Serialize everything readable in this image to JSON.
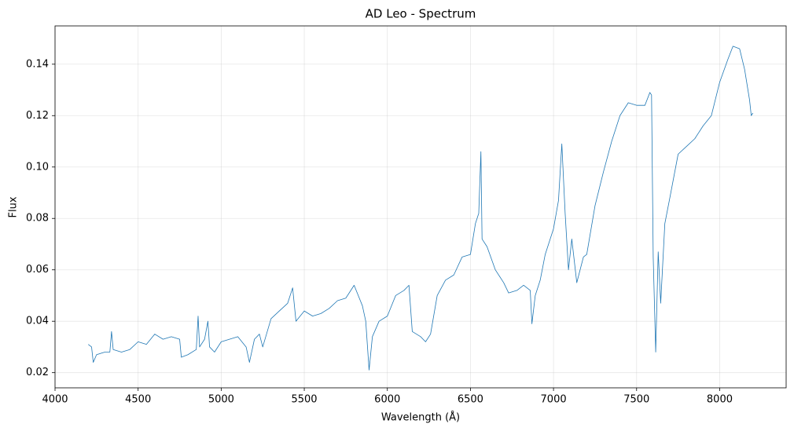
{
  "chart_data": {
    "type": "line",
    "title": "AD Leo - Spectrum",
    "x_label": "Wavelength (Å)",
    "y_label": "Flux",
    "color": "#1f77b4",
    "grid": true,
    "xlim": [
      4000,
      8400
    ],
    "xticks": [
      4000,
      4500,
      5000,
      5500,
      6000,
      6500,
      7000,
      7500,
      8000
    ],
    "ylim": [
      0.0141,
      0.1549
    ],
    "yticks": [
      0.02,
      0.04,
      0.06,
      0.08,
      {
        "value": 0.1,
        "label": "0.10"
      },
      0.12,
      0.14
    ],
    "x": [
      4200,
      4220,
      4230,
      4250,
      4300,
      4330,
      4340,
      4350,
      4400,
      4450,
      4500,
      4550,
      4600,
      4650,
      4700,
      4750,
      4760,
      4800,
      4850,
      4861,
      4870,
      4900,
      4920,
      4930,
      4960,
      5000,
      5050,
      5100,
      5150,
      5170,
      5200,
      5230,
      5250,
      5300,
      5350,
      5400,
      5430,
      5450,
      5500,
      5550,
      5600,
      5650,
      5700,
      5750,
      5800,
      5850,
      5870,
      5890,
      5910,
      5950,
      6000,
      6050,
      6100,
      6130,
      6150,
      6200,
      6230,
      6260,
      6300,
      6350,
      6400,
      6450,
      6500,
      6530,
      6550,
      6563,
      6570,
      6600,
      6650,
      6700,
      6730,
      6780,
      6820,
      6860,
      6870,
      6890,
      6920,
      6950,
      7000,
      7030,
      7050,
      7070,
      7090,
      7110,
      7140,
      7180,
      7200,
      7250,
      7300,
      7350,
      7400,
      7450,
      7500,
      7550,
      7580,
      7590,
      7600,
      7615,
      7630,
      7645,
      7670,
      7700,
      7750,
      7800,
      7850,
      7900,
      7950,
      8000,
      8050,
      8080,
      8120,
      8150,
      8180,
      8190,
      8200
    ],
    "values": [
      0.031,
      0.03,
      0.024,
      0.027,
      0.028,
      0.028,
      0.036,
      0.029,
      0.028,
      0.029,
      0.032,
      0.031,
      0.035,
      0.033,
      0.034,
      0.033,
      0.026,
      0.027,
      0.029,
      0.042,
      0.03,
      0.033,
      0.04,
      0.03,
      0.028,
      0.032,
      0.033,
      0.034,
      0.03,
      0.024,
      0.033,
      0.035,
      0.03,
      0.041,
      0.044,
      0.047,
      0.053,
      0.04,
      0.044,
      0.042,
      0.043,
      0.045,
      0.048,
      0.049,
      0.054,
      0.046,
      0.04,
      0.021,
      0.034,
      0.04,
      0.042,
      0.05,
      0.052,
      0.054,
      0.036,
      0.034,
      0.032,
      0.035,
      0.05,
      0.056,
      0.058,
      0.065,
      0.066,
      0.078,
      0.082,
      0.106,
      0.072,
      0.069,
      0.06,
      0.055,
      0.051,
      0.052,
      0.054,
      0.052,
      0.039,
      0.05,
      0.056,
      0.066,
      0.076,
      0.087,
      0.109,
      0.082,
      0.06,
      0.072,
      0.055,
      0.065,
      0.066,
      0.085,
      0.098,
      0.11,
      0.12,
      0.125,
      0.124,
      0.124,
      0.129,
      0.128,
      0.065,
      0.028,
      0.067,
      0.047,
      0.078,
      0.088,
      0.105,
      0.108,
      0.111,
      0.116,
      0.12,
      0.133,
      0.142,
      0.147,
      0.146,
      0.138,
      0.126,
      0.12,
      0.121
    ]
  }
}
